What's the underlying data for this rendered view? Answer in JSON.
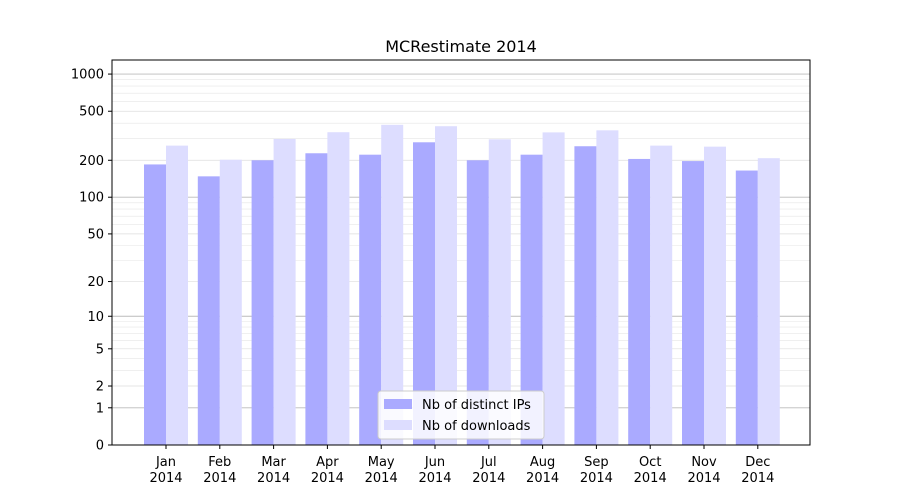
{
  "chart_data": {
    "type": "bar",
    "title": "MCRestimate 2014",
    "xlabel": "",
    "ylabel": "",
    "categories": [
      [
        "Jan",
        "2014"
      ],
      [
        "Feb",
        "2014"
      ],
      [
        "Mar",
        "2014"
      ],
      [
        "Apr",
        "2014"
      ],
      [
        "May",
        "2014"
      ],
      [
        "Jun",
        "2014"
      ],
      [
        "Jul",
        "2014"
      ],
      [
        "Aug",
        "2014"
      ],
      [
        "Sep",
        "2014"
      ],
      [
        "Oct",
        "2014"
      ],
      [
        "Nov",
        "2014"
      ],
      [
        "Dec",
        "2014"
      ]
    ],
    "series": [
      {
        "name": "Nb of distinct IPs",
        "color": "#aaaaff",
        "values": [
          185,
          148,
          200,
          228,
          222,
          280,
          200,
          222,
          260,
          205,
          197,
          165
        ]
      },
      {
        "name": "Nb of downloads",
        "color": "#ddddff",
        "values": [
          263,
          202,
          298,
          338,
          388,
          378,
          296,
          337,
          350,
          263,
          258,
          208
        ]
      }
    ],
    "y_scale": "symlog",
    "y_ticks": [
      0,
      1,
      2,
      5,
      10,
      20,
      50,
      100,
      200,
      500,
      1000
    ],
    "ylim": [
      0,
      1300
    ],
    "grid": true,
    "legend_position": "lower center"
  }
}
